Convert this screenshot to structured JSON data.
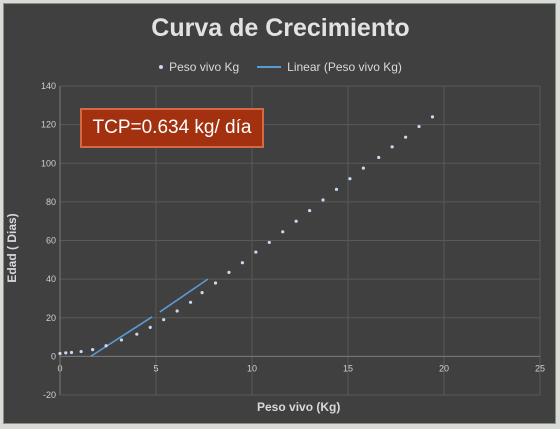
{
  "chart_data": {
    "type": "scatter",
    "title": "Curva de Crecimiento",
    "xlabel": "Peso vivo (Kg)",
    "ylabel": "Edad ( Dias)",
    "xlim": [
      0,
      25
    ],
    "ylim": [
      -20,
      140
    ],
    "x_ticks": [
      "0",
      "5",
      "10",
      "15",
      "20",
      "25"
    ],
    "y_ticks": [
      "-20",
      "0",
      "20",
      "40",
      "60",
      "80",
      "100",
      "120",
      "140"
    ],
    "grid": true,
    "legend": "top",
    "series": [
      {
        "name": "Peso vivo Kg",
        "kind": "points",
        "x": [
          0,
          0.3,
          0.6,
          1.1,
          1.7,
          2.4,
          3.2,
          4.0,
          4.7,
          5.4,
          6.1,
          6.8,
          7.4,
          8.1,
          8.8,
          9.5,
          10.2,
          10.9,
          11.6,
          12.3,
          13.0,
          13.7,
          14.4,
          15.1,
          15.8,
          16.6,
          17.3,
          18.0,
          18.7,
          19.4
        ],
        "y": [
          1.5,
          1.8,
          2.0,
          2.5,
          3.5,
          5.5,
          8.5,
          11.5,
          15.0,
          19.0,
          23.5,
          28.0,
          33.0,
          38.0,
          43.5,
          48.5,
          54.0,
          59.0,
          64.5,
          70.0,
          75.5,
          81.0,
          86.5,
          92.0,
          97.5,
          103.0,
          108.5,
          113.5,
          119.0,
          124.0
        ]
      },
      {
        "name": "Linear (Peso vivo Kg)",
        "kind": "trendline",
        "segments": [
          [
            [
              1.6,
              0
            ],
            [
              4.8,
              20.5
            ]
          ],
          [
            [
              5.2,
              23
            ],
            [
              7.7,
              40
            ]
          ]
        ]
      }
    ],
    "annotation": "TCP=0.634 kg/ día",
    "colors": {
      "background": "#404040",
      "points": "#c8d8f0",
      "trendline": "#5b9bd5",
      "annotation_fill": "#a3310f",
      "grid": "#595959"
    }
  }
}
